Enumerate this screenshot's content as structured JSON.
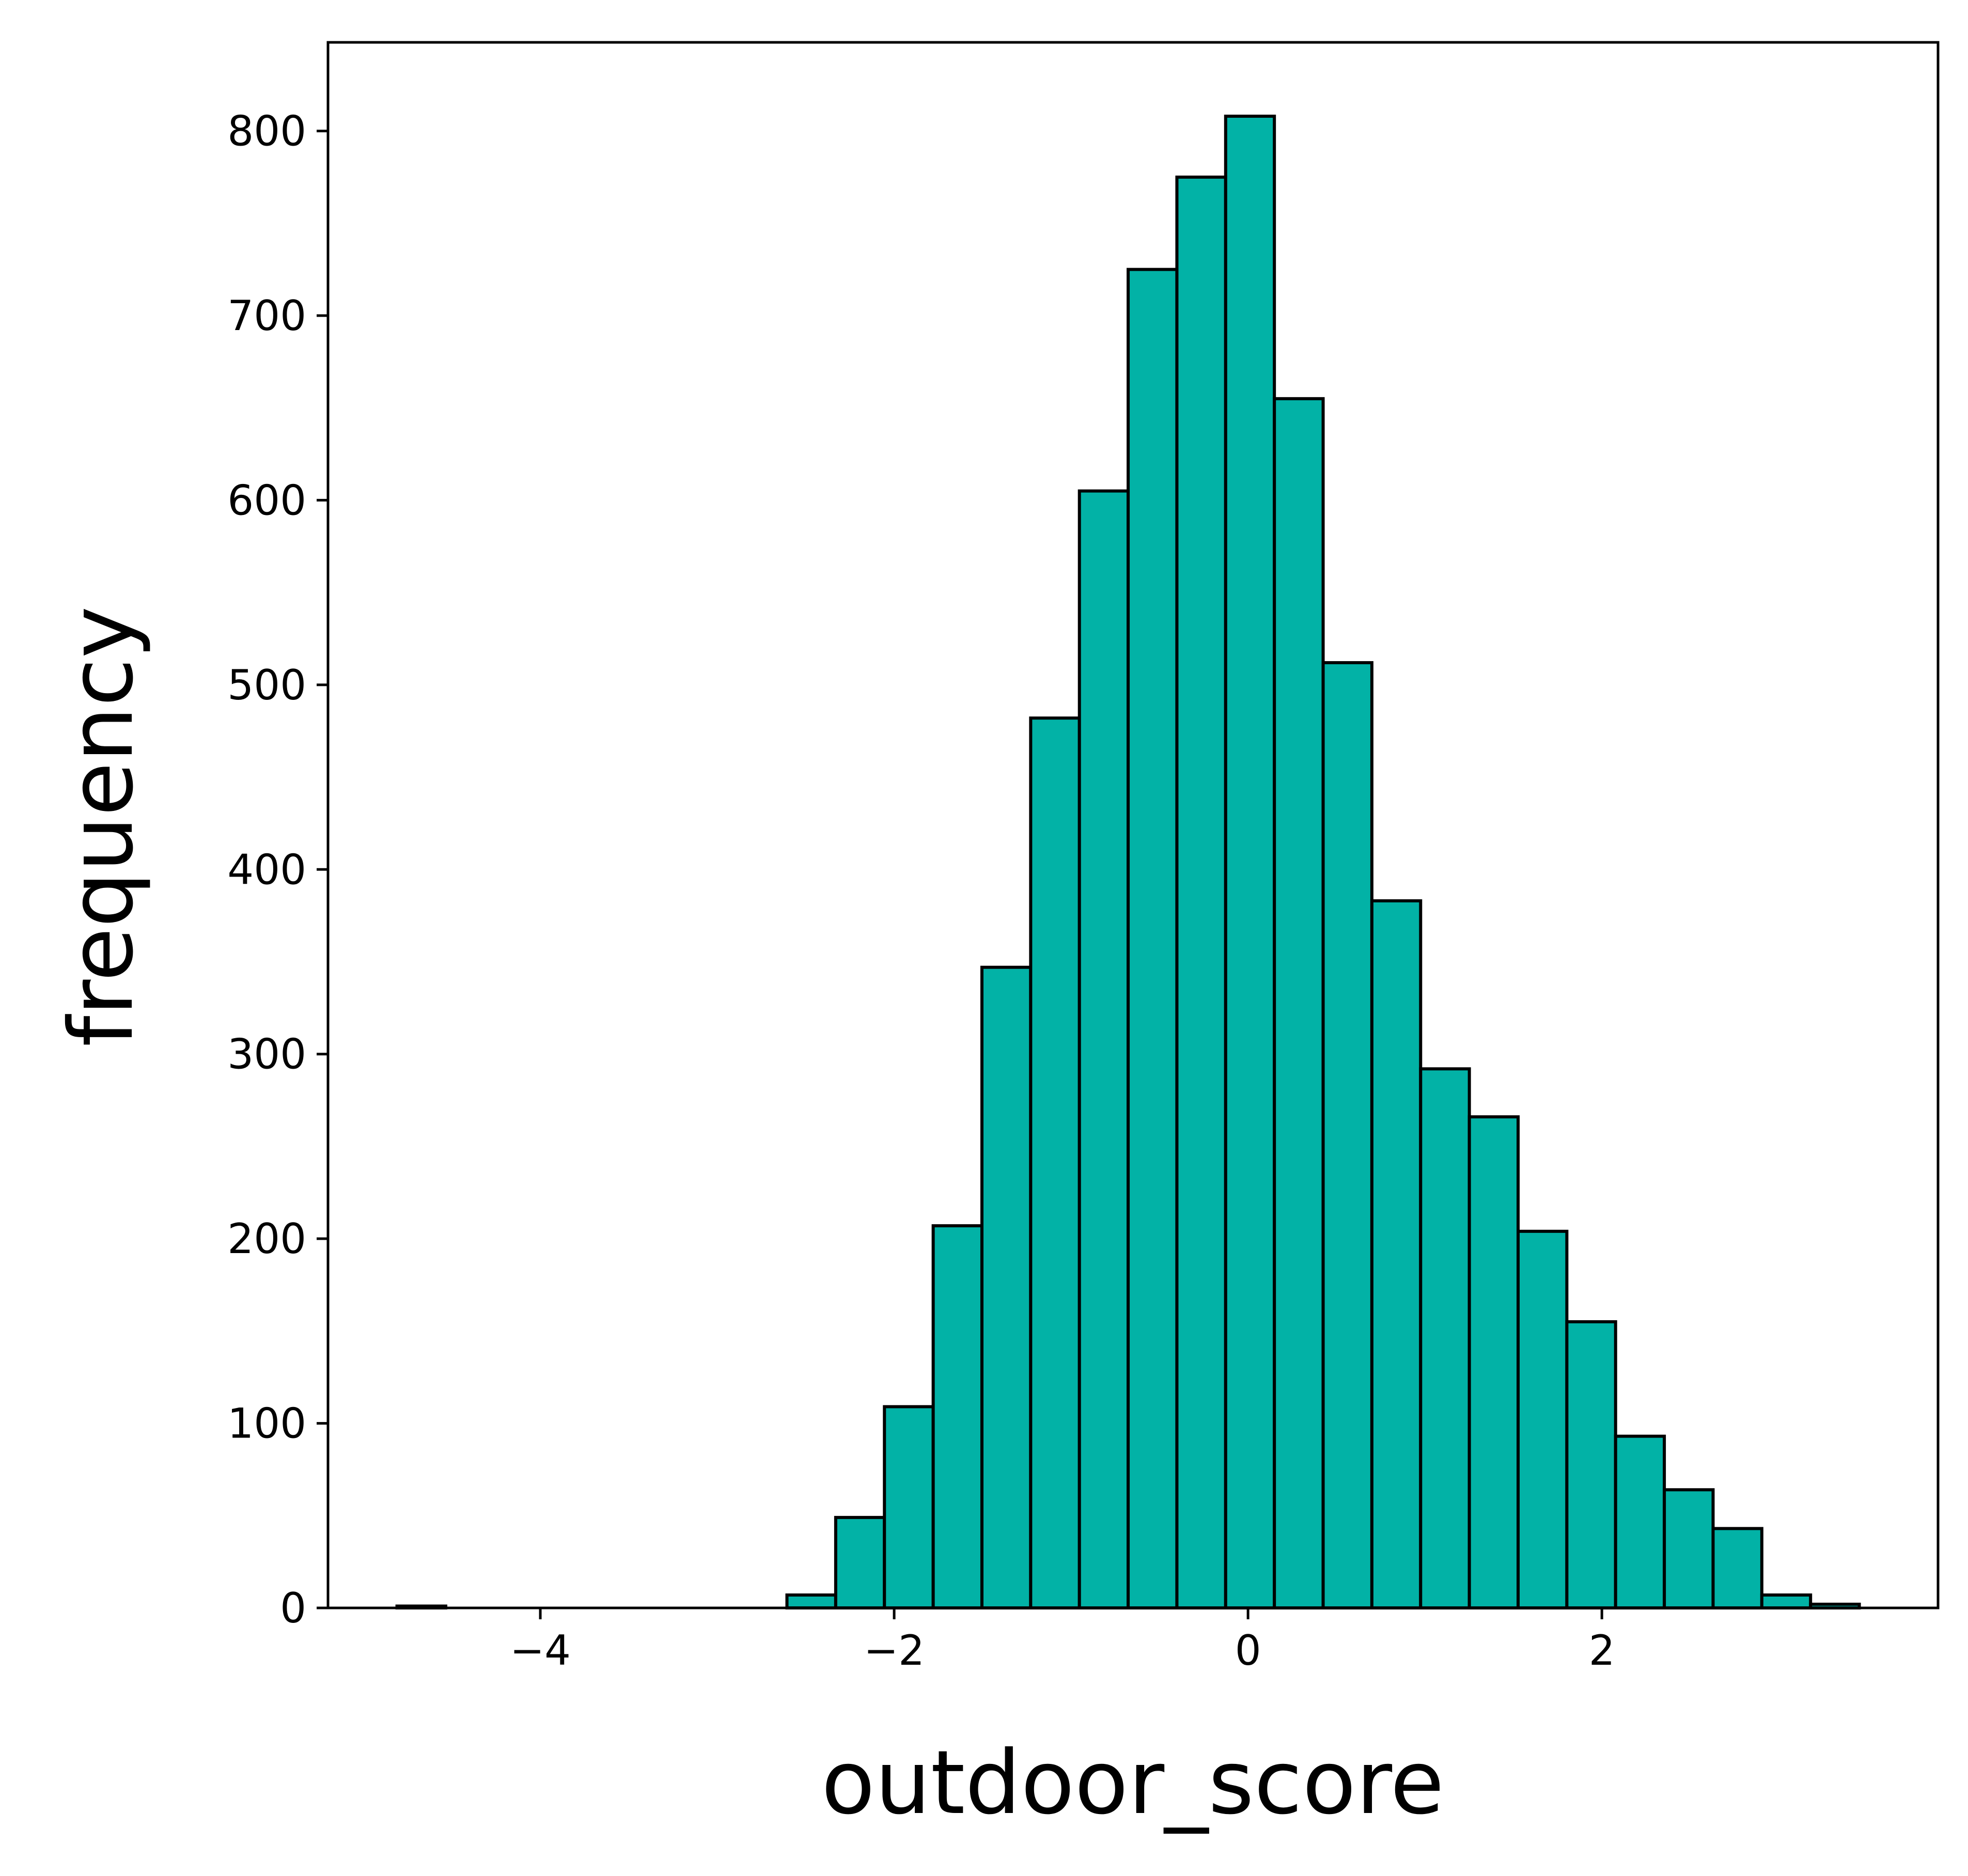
{
  "colors": {
    "bar_fill": "#02B2A6",
    "bar_edge": "#000000",
    "axis": "#000000"
  },
  "chart_data": {
    "type": "bar",
    "title": "",
    "xlabel": "outdoor_score",
    "ylabel": "frequency",
    "xlim": [
      -5.2,
      3.9
    ],
    "ylim": [
      0,
      848
    ],
    "xticks": [
      -4,
      -2,
      0,
      2
    ],
    "xtick_labels": [
      "−4",
      "−2",
      "0",
      "2"
    ],
    "yticks": [
      0,
      100,
      200,
      300,
      400,
      500,
      600,
      700,
      800
    ],
    "ytick_labels": [
      "0",
      "100",
      "200",
      "300",
      "400",
      "500",
      "600",
      "700",
      "800"
    ],
    "bin_start": -4.81,
    "bin_width": 0.2755,
    "values": [
      1,
      0,
      0,
      0,
      0,
      0,
      0,
      0,
      7,
      49,
      109,
      207,
      347,
      482,
      605,
      725,
      775,
      808,
      655,
      512,
      383,
      292,
      266,
      204,
      155,
      93,
      64,
      43,
      7,
      2
    ],
    "grid": false
  }
}
